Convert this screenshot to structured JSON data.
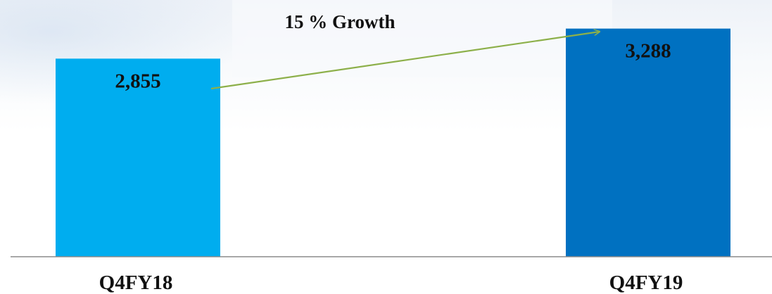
{
  "chart_data": {
    "type": "bar",
    "categories": [
      "Q4FY18",
      "Q4FY19"
    ],
    "values": [
      2855,
      3288
    ],
    "value_labels": [
      "2,855",
      "3,288"
    ],
    "annotation": "15 % Growth",
    "ylim": [
      0,
      3700
    ],
    "grid": false,
    "legend": "none",
    "colors": {
      "bars": [
        "#00adef",
        "#0071c1"
      ],
      "arrow": "#8db04a",
      "axis": "#8c8c8c",
      "text": "#111111"
    }
  }
}
